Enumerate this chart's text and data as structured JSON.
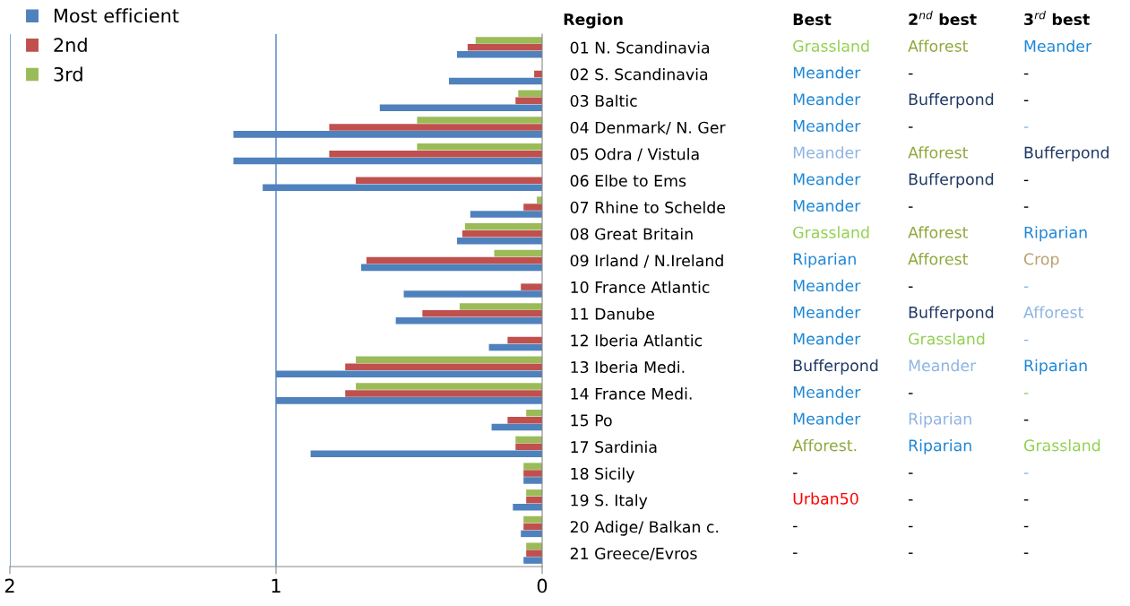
{
  "chart_data": [
    {
      "type": "bar",
      "orientation": "horizontal",
      "ylabel": "Region",
      "categories": [
        "01 N. Scandinavia",
        "02 S. Scandinavia",
        "03 Baltic",
        "04 Denmark/ N. Ger",
        "05 Odra / Vistula",
        "06 Elbe to Ems",
        "07 Rhine to Schelde",
        "08 Great Britain",
        "09 Irland / N.Ireland",
        "10 France Atlantic",
        "11 Danube",
        "12 Iberia Atlantic",
        "13 Iberia Medi.",
        "14 France Medi.",
        "15 Po",
        "17 Sardinia",
        "18 Sicily",
        "19 S. Italy",
        "20 Adige/ Balkan c.",
        "21 Greece/Evros"
      ],
      "series": [
        {
          "name": "Most efficient",
          "color": "#4f81bd",
          "values": [
            0.32,
            0.35,
            0.61,
            1.16,
            1.16,
            1.05,
            0.27,
            0.32,
            0.68,
            0.52,
            0.55,
            0.2,
            1.0,
            1.0,
            0.19,
            0.87,
            0.07,
            0.11,
            0.08,
            0.07
          ]
        },
        {
          "name": "2nd",
          "color": "#c0504d",
          "values": [
            0.28,
            0.03,
            0.1,
            0.8,
            0.8,
            0.7,
            0.07,
            0.3,
            0.66,
            0.08,
            0.45,
            0.13,
            0.74,
            0.74,
            0.13,
            0.1,
            0.07,
            0.06,
            0.07,
            0.06
          ]
        },
        {
          "name": "3rd",
          "color": "#9bbb59",
          "values": [
            0.25,
            0.0,
            0.09,
            0.47,
            0.47,
            0.0,
            0.02,
            0.29,
            0.18,
            0.0,
            0.31,
            0.0,
            0.7,
            0.7,
            0.06,
            0.1,
            0.07,
            0.06,
            0.07,
            0.06
          ]
        }
      ],
      "xlim": [
        2,
        0
      ],
      "xticks": [
        2,
        1,
        0
      ],
      "ref_lines": [
        {
          "axis": "x",
          "value": 2,
          "color": "#4f81bd"
        },
        {
          "axis": "x",
          "value": 1,
          "color": "#4f81bd"
        }
      ],
      "legend": "top left"
    },
    {
      "type": "other",
      "categories": [
        "Best",
        "2$^{nd}$ best",
        "3$^{rd}$ best"
      ],
      "annotations": [
        "Grassland",
        "Afforest",
        "Meander",
        "Meander",
        "-",
        "-",
        "Meander",
        "Bufferpond",
        "-",
        "Meander",
        "-",
        "-",
        "Meander",
        "Afforest",
        "Bufferpond",
        "Meander",
        "Bufferpond",
        "-",
        "Meander",
        "-",
        "-",
        "Grassland",
        "Afforest",
        "Riparian",
        "Riparian",
        "Afforest",
        "Crop",
        "Meander",
        "-",
        "-",
        "Meander",
        "Bufferpond",
        "Afforest",
        "Meander",
        "Grassland",
        "-",
        "Bufferpond",
        "Meander",
        "Riparian",
        "Meander",
        "-",
        "-",
        "Meander",
        "Riparian",
        "-",
        "Afforest.",
        "Riparian",
        "Grassland",
        "-",
        "-",
        "-",
        "Urban50",
        "-",
        "-",
        "-",
        "-",
        "-",
        "-",
        "-",
        "-"
      ],
      "colors": [
        "#92d050",
        "#8fa83c",
        "#1f87d6",
        "#1f87d6",
        "#000000",
        "#000000",
        "#1f87d6",
        "#1f3864",
        "#000000",
        "#1f87d6",
        "#000000",
        "#8db4e2",
        "#8db4e2",
        "#8fa83c",
        "#1f3864",
        "#1f87d6",
        "#1f3864",
        "#000000",
        "#1f87d6",
        "#000000",
        "#000000",
        "#92d050",
        "#8fa83c",
        "#1f87d6",
        "#1f87d6",
        "#8fa83c",
        "#b9a070",
        "#1f87d6",
        "#000000",
        "#8db4e2",
        "#1f87d6",
        "#1f3864",
        "#8db4e2",
        "#1f87d6",
        "#92d050",
        "#8db4e2",
        "#1f3864",
        "#8db4e2",
        "#1f87d6",
        "#1f87d6",
        "#000000",
        "#92d050",
        "#1f87d6",
        "#8db4e2",
        "#000000",
        "#8fa83c",
        "#1f87d6",
        "#92d050",
        "#000000",
        "#000000",
        "#8db4e2",
        "#ff0000",
        "#000000",
        "#000000",
        "#000000",
        "#000000",
        "#000000",
        "#000000",
        "#000000",
        "#000000"
      ]
    }
  ]
}
